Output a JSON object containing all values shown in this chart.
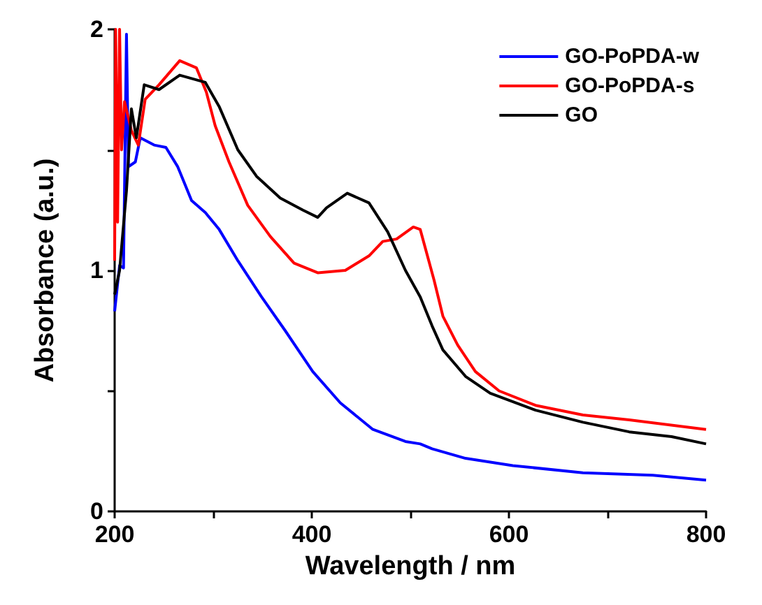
{
  "chart_data": {
    "type": "line",
    "xlabel": "Wavelength / nm",
    "ylabel": "Absorbance (a.u.)",
    "xlim": [
      200,
      800
    ],
    "ylim": [
      0,
      2
    ],
    "xticks": [
      200,
      {
        "value": 300,
        "label": null
      },
      400,
      {
        "value": 500,
        "label": null
      },
      600,
      {
        "value": 700,
        "label": null
      },
      800
    ],
    "yticks": [
      0,
      {
        "value": 0.5,
        "label": null
      },
      1,
      {
        "value": 1.5,
        "label": null
      },
      2
    ],
    "grid": false,
    "legend": "top right",
    "marker": "none",
    "line_style": "solid",
    "series": [
      {
        "name": "GO-PoPDA-w",
        "color": "#0000ff",
        "x": [
          200,
          205,
          209,
          212,
          214,
          221,
          226,
          240,
          252,
          264,
          278,
          292,
          306,
          325,
          349,
          373,
          401,
          429,
          462,
          495,
          510,
          522,
          556,
          604,
          675,
          746,
          800
        ],
        "values": [
          0.83,
          1.02,
          1.01,
          1.98,
          1.43,
          1.45,
          1.55,
          1.52,
          1.51,
          1.43,
          1.29,
          1.24,
          1.17,
          1.04,
          0.89,
          0.75,
          0.58,
          0.45,
          0.34,
          0.29,
          0.28,
          0.26,
          0.22,
          0.19,
          0.16,
          0.15,
          0.13
        ]
      },
      {
        "name": "GO-PoPDA-s",
        "color": "#ff0000",
        "x": [
          200,
          201,
          203,
          205,
          207,
          210,
          217,
          224,
          231,
          245,
          266,
          283,
          293,
          302,
          316,
          335,
          358,
          382,
          406,
          434,
          458,
          472,
          486,
          503,
          510,
          524,
          533,
          548,
          566,
          590,
          627,
          675,
          722,
          800
        ],
        "values": [
          1.04,
          2.0,
          1.2,
          2.0,
          1.5,
          1.7,
          1.58,
          1.52,
          1.71,
          1.77,
          1.87,
          1.84,
          1.74,
          1.6,
          1.45,
          1.27,
          1.14,
          1.03,
          0.99,
          1.0,
          1.06,
          1.12,
          1.13,
          1.18,
          1.17,
          0.96,
          0.81,
          0.69,
          0.58,
          0.5,
          0.44,
          0.4,
          0.38,
          0.34
        ]
      },
      {
        "name": "GO",
        "color": "#000000",
        "x": [
          200,
          205,
          212,
          217,
          222,
          230,
          245,
          266,
          292,
          306,
          325,
          344,
          368,
          391,
          406,
          415,
          436,
          458,
          477,
          495,
          510,
          522,
          533,
          556,
          581,
          627,
          675,
          722,
          765,
          800
        ],
        "values": [
          0.9,
          1.0,
          1.33,
          1.67,
          1.55,
          1.77,
          1.75,
          1.81,
          1.78,
          1.68,
          1.5,
          1.39,
          1.3,
          1.25,
          1.22,
          1.26,
          1.32,
          1.28,
          1.16,
          1.0,
          0.89,
          0.77,
          0.67,
          0.56,
          0.49,
          0.42,
          0.37,
          0.33,
          0.31,
          0.28
        ]
      }
    ]
  }
}
